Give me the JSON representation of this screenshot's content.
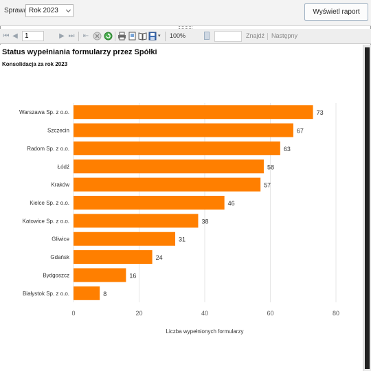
{
  "params": {
    "label": "Sprawa:",
    "selected": "Rok 2023",
    "view_report_button": "Wyświetl raport"
  },
  "toolbar": {
    "page_number": "1",
    "zoom": "100%",
    "find_label": "Znajdź",
    "next_label": "Następny",
    "icons": [
      "first-page-icon",
      "previous-page-icon",
      "next-page-icon",
      "last-page-icon",
      "back-icon",
      "stop-icon",
      "refresh-icon",
      "print-icon",
      "print-layout-icon",
      "page-setup-icon",
      "export-icon"
    ]
  },
  "report": {
    "title": "Status wypełniania formularzy przez Spółki",
    "subtitle": "Konsolidacja za rok 2023"
  },
  "chart_data": {
    "type": "bar",
    "orientation": "horizontal",
    "categories": [
      "Warszawa Sp. z o.o.",
      "Szczecin",
      "Radom Sp. z o.o.",
      "Łódź",
      "Kraków",
      "Kielce Sp. z o.o.",
      "Katowice Sp. z o.o.",
      "Gliwice",
      "Gdańsk",
      "Bydgoszcz",
      "Białystok Sp. z o.o."
    ],
    "values": [
      73,
      67,
      63,
      58,
      57,
      46,
      38,
      31,
      24,
      16,
      8
    ],
    "xlabel": "Liczba wypełnionych formularzy",
    "xlim": [
      0,
      80
    ],
    "xticks": [
      0,
      20,
      40,
      60,
      80
    ],
    "grid": true,
    "bar_color": "#ff7f00",
    "data_labels": true
  }
}
